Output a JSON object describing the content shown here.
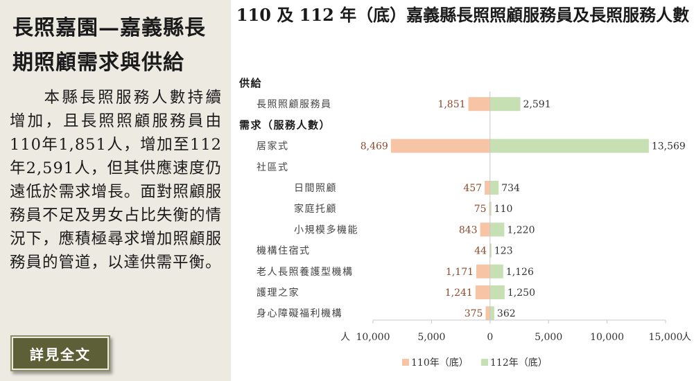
{
  "panel": {
    "title": "長照嘉園—嘉義縣長期照顧需求與供給",
    "body": "本縣長照服務人數持續增加，且長照照顧服務員由110年1,851人，增加至112年2,591人，但其供應速度仍遠低於需求增長。面對照顧服務員不足及男女占比失衡的情況下，應積極尋求增加照顧服務員的管道，以達供需平衡。",
    "button_label": "詳見全文"
  },
  "colors": {
    "series_2021": "#f7c4a6",
    "series_2023": "#c6e0b4",
    "label_2021": "#8b4a2b",
    "label_2023": "#333333",
    "panel_bg": "#edeae1",
    "button_bg": "#5d5f36"
  },
  "chart_data": {
    "type": "bar",
    "orientation": "horizontal-diverging",
    "title": "110 及 112 年（底）嘉義縣長照照顧服務員及長照服務人數",
    "xlabel": "人",
    "xlim": [
      -10000,
      15000
    ],
    "x_ticks": [
      -10000,
      -5000,
      0,
      5000,
      10000,
      15000
    ],
    "x_tick_labels": [
      "10,000",
      "5,000",
      "0",
      "5,000",
      "10,000",
      "15,000"
    ],
    "x_unit": "人",
    "grid": false,
    "legend_position": "bottom-center",
    "rows": [
      {
        "label": "供給",
        "header": true,
        "indent": 0
      },
      {
        "label": "長照照顧服務員",
        "indent": 1,
        "v2021": 1851,
        "v2023": 2591,
        "l2021": "1,851",
        "l2023": "2,591"
      },
      {
        "label": "需求（服務人數）",
        "header": true,
        "indent": 0
      },
      {
        "label": "居家式",
        "indent": 1,
        "v2021": 8469,
        "v2023": 13569,
        "l2021": "8,469",
        "l2023": "13,569"
      },
      {
        "label": "社區式",
        "indent": 1
      },
      {
        "label": "日間照顧",
        "indent": 2,
        "v2021": 457,
        "v2023": 734,
        "l2021": "457",
        "l2023": "734"
      },
      {
        "label": "家庭托顧",
        "indent": 2,
        "v2021": 75,
        "v2023": 110,
        "l2021": "75",
        "l2023": "110"
      },
      {
        "label": "小規模多機能",
        "indent": 2,
        "v2021": 843,
        "v2023": 1220,
        "l2021": "843",
        "l2023": "1,220"
      },
      {
        "label": "機構住宿式",
        "indent": 1,
        "v2021": 44,
        "v2023": 123,
        "l2021": "44",
        "l2023": "123"
      },
      {
        "label": "老人長照養護型機構",
        "indent": 1,
        "v2021": 1171,
        "v2023": 1126,
        "l2021": "1,171",
        "l2023": "1,126"
      },
      {
        "label": "護理之家",
        "indent": 1,
        "v2021": 1241,
        "v2023": 1250,
        "l2021": "1,241",
        "l2023": "1,250"
      },
      {
        "label": "身心障礙福利機構",
        "indent": 1,
        "v2021": 375,
        "v2023": 362,
        "l2021": "375",
        "l2023": "362"
      }
    ],
    "series": [
      {
        "name": "110年（底）",
        "key": "v2021"
      },
      {
        "name": "112年（底）",
        "key": "v2023"
      }
    ]
  }
}
